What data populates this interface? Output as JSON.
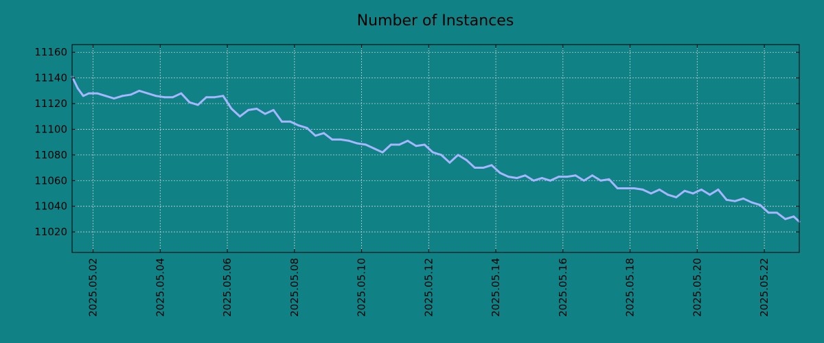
{
  "colors": {
    "background": "#108286",
    "line": "#a6b6ff",
    "grid": "#c8d4d6",
    "axis": "#000000"
  },
  "chart_data": {
    "type": "line",
    "title": "Number of Instances",
    "xlabel": "",
    "ylabel": "",
    "x_type": "date",
    "xlim": [
      "2025-05-01T09:00",
      "2025-05-23T01:00"
    ],
    "ylim": [
      11004,
      11166
    ],
    "yticks": [
      11020,
      11040,
      11060,
      11080,
      11100,
      11120,
      11140,
      11160
    ],
    "xticks": [
      "2025.05.02",
      "2025.05.04",
      "2025.05.06",
      "2025.05.08",
      "2025.05.10",
      "2025.05.12",
      "2025.05.14",
      "2025.05.16",
      "2025.05.18",
      "2025.05.20",
      "2025.05.22"
    ],
    "grid": true,
    "legend": "none",
    "series": [
      {
        "x": [
          "2025-05-01T09:00",
          "2025-05-01T13:00",
          "2025-05-01T17:00",
          "2025-05-01T21:00",
          "2025-05-02T03:00",
          "2025-05-02T09:00",
          "2025-05-02T15:00",
          "2025-05-02T21:00",
          "2025-05-03T03:00",
          "2025-05-03T09:00",
          "2025-05-03T15:00",
          "2025-05-03T21:00",
          "2025-05-04T03:00",
          "2025-05-04T09:00",
          "2025-05-04T15:00",
          "2025-05-04T21:00",
          "2025-05-05T03:00",
          "2025-05-05T09:00",
          "2025-05-05T15:00",
          "2025-05-05T21:00",
          "2025-05-06T03:00",
          "2025-05-06T09:00",
          "2025-05-06T15:00",
          "2025-05-06T21:00",
          "2025-05-07T03:00",
          "2025-05-07T09:00",
          "2025-05-07T15:00",
          "2025-05-07T21:00",
          "2025-05-08T03:00",
          "2025-05-08T09:00",
          "2025-05-08T15:00",
          "2025-05-08T21:00",
          "2025-05-09T03:00",
          "2025-05-09T09:00",
          "2025-05-09T15:00",
          "2025-05-09T21:00",
          "2025-05-10T03:00",
          "2025-05-10T09:00",
          "2025-05-10T15:00",
          "2025-05-10T21:00",
          "2025-05-11T03:00",
          "2025-05-11T09:00",
          "2025-05-11T15:00",
          "2025-05-11T21:00",
          "2025-05-12T03:00",
          "2025-05-12T09:00",
          "2025-05-12T15:00",
          "2025-05-12T21:00",
          "2025-05-13T03:00",
          "2025-05-13T09:00",
          "2025-05-13T15:00",
          "2025-05-13T21:00",
          "2025-05-14T03:00",
          "2025-05-14T09:00",
          "2025-05-14T15:00",
          "2025-05-14T21:00",
          "2025-05-15T03:00",
          "2025-05-15T09:00",
          "2025-05-15T15:00",
          "2025-05-15T21:00",
          "2025-05-16T03:00",
          "2025-05-16T09:00",
          "2025-05-16T15:00",
          "2025-05-16T21:00",
          "2025-05-17T03:00",
          "2025-05-17T09:00",
          "2025-05-17T15:00",
          "2025-05-17T21:00",
          "2025-05-18T03:00",
          "2025-05-18T09:00",
          "2025-05-18T15:00",
          "2025-05-18T21:00",
          "2025-05-19T03:00",
          "2025-05-19T09:00",
          "2025-05-19T15:00",
          "2025-05-19T21:00",
          "2025-05-20T03:00",
          "2025-05-20T09:00",
          "2025-05-20T15:00",
          "2025-05-20T21:00",
          "2025-05-21T03:00",
          "2025-05-21T09:00",
          "2025-05-21T15:00",
          "2025-05-21T21:00",
          "2025-05-22T03:00",
          "2025-05-22T09:00",
          "2025-05-22T15:00",
          "2025-05-22T21:00",
          "2025-05-23T01:00"
        ],
        "y": [
          11141,
          11132,
          11126,
          11128,
          11128,
          11126,
          11124,
          11126,
          11127,
          11130,
          11128,
          11126,
          11125,
          11125,
          11128,
          11121,
          11119,
          11125,
          11125,
          11126,
          11116,
          11110,
          11115,
          11116,
          11112,
          11115,
          11106,
          11106,
          11103,
          11101,
          11095,
          11097,
          11092,
          11092,
          11091,
          11089,
          11088,
          11085,
          11082,
          11088,
          11088,
          11091,
          11087,
          11088,
          11082,
          11080,
          11074,
          11080,
          11076,
          11070,
          11070,
          11072,
          11066,
          11063,
          11062,
          11064,
          11060,
          11062,
          11060,
          11063,
          11063,
          11064,
          11060,
          11064,
          11060,
          11061,
          11054,
          11054,
          11054,
          11053,
          11050,
          11053,
          11049,
          11047,
          11052,
          11050,
          11053,
          11049,
          11053,
          11045,
          11044,
          11046,
          11043,
          11041,
          11035,
          11035,
          11030,
          11032,
          11028
        ]
      }
    ]
  }
}
